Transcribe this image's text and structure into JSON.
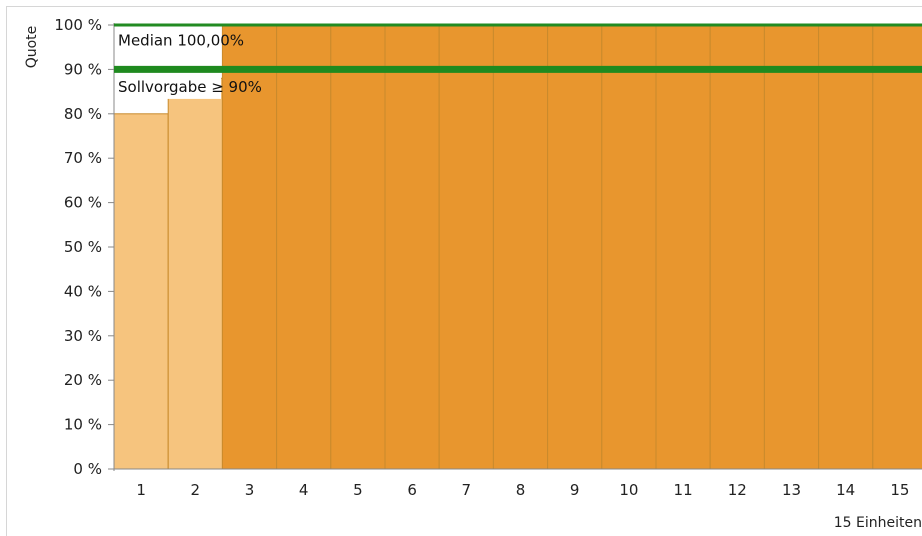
{
  "chart_data": {
    "type": "bar",
    "title": "",
    "ylabel": "Quote",
    "xlabel": "15 Einheiten",
    "ylim": [
      0,
      100
    ],
    "yticks": [
      "0 %",
      "10 %",
      "20 %",
      "30 %",
      "40 %",
      "50 %",
      "60 %",
      "70 %",
      "80 %",
      "90 %",
      "100 %"
    ],
    "categories": [
      "1",
      "2",
      "3",
      "4",
      "5",
      "6",
      "7",
      "8",
      "9",
      "10",
      "11",
      "12",
      "13",
      "14",
      "15"
    ],
    "values": [
      80,
      88,
      100,
      100,
      100,
      100,
      100,
      100,
      100,
      100,
      100,
      100,
      100,
      100,
      100
    ],
    "below_target_color": "#f6c47e",
    "above_target_color": "#e8962e",
    "reference_lines": [
      {
        "value": 100,
        "label": "Median 100,00%",
        "color": "#228b22"
      },
      {
        "value": 90,
        "label": "Sollvorgabe ≥ 90%",
        "color": "#1f8a1f"
      }
    ],
    "grid": false
  }
}
